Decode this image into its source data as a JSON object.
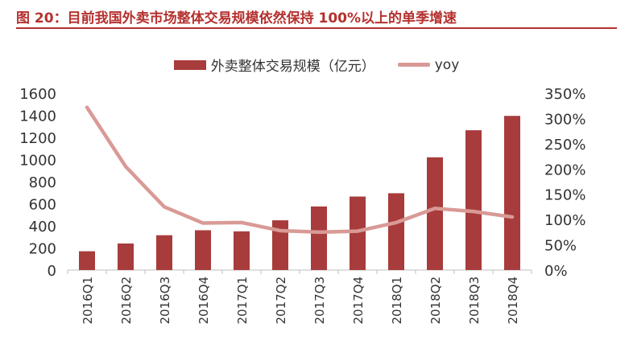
{
  "figure": {
    "title": "图 20：目前我国外卖市场整体交易规模依然保持 100%以上的单季增速"
  },
  "colors": {
    "accent": "#b5312f",
    "bar": "#a83c3c",
    "line": "#d99a96"
  },
  "chart_data": {
    "type": "bar",
    "categories": [
      "2016Q1",
      "2016Q2",
      "2016Q3",
      "2016Q4",
      "2017Q1",
      "2017Q2",
      "2017Q3",
      "2017Q4",
      "2018Q1",
      "2018Q2",
      "2018Q3",
      "2018Q4"
    ],
    "series": [
      {
        "name": "外卖整体交易规模（亿元）",
        "type": "bar",
        "axis": "left",
        "values": [
          170,
          240,
          315,
          360,
          350,
          450,
          575,
          665,
          695,
          1020,
          1265,
          1395
        ]
      },
      {
        "name": "yoy",
        "type": "line",
        "axis": "right",
        "values": [
          3.22,
          2.05,
          1.25,
          0.93,
          0.94,
          0.78,
          0.75,
          0.77,
          0.94,
          1.22,
          1.16,
          1.05
        ]
      }
    ],
    "y_left": {
      "ylim": [
        0,
        1600
      ],
      "ticks": [
        "0",
        "200",
        "400",
        "600",
        "800",
        "1000",
        "1200",
        "1400",
        "1600"
      ]
    },
    "y_right": {
      "ylim": [
        0,
        3.5
      ],
      "ticks": [
        "0%",
        "50%",
        "100%",
        "150%",
        "200%",
        "250%",
        "300%",
        "350%"
      ]
    },
    "legend_position": "top-center",
    "grid": false
  }
}
